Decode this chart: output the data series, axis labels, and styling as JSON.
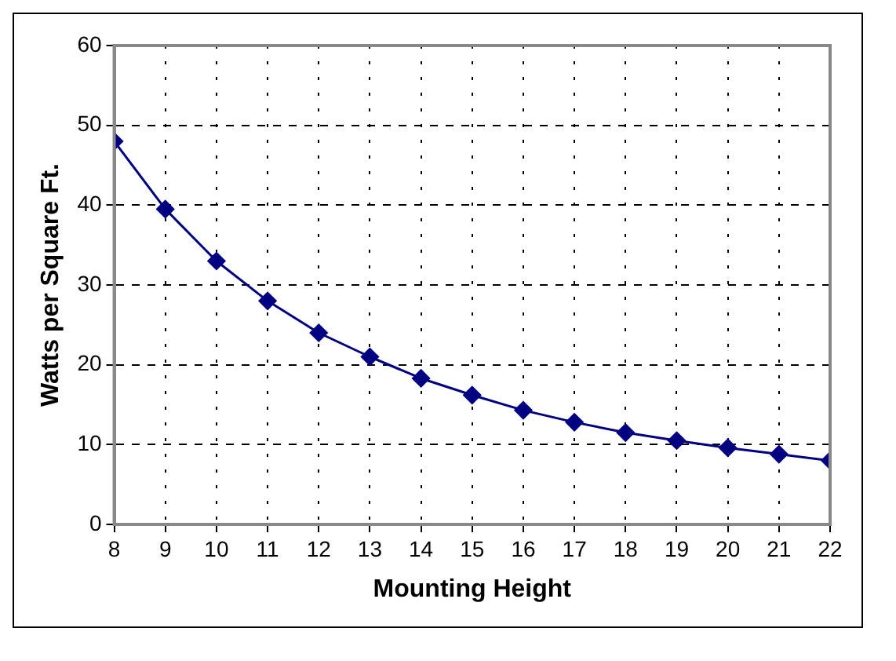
{
  "chart_data": {
    "type": "line",
    "xlabel": "Mounting Height",
    "ylabel": "Watts per Square Ft.",
    "x": [
      8,
      9,
      10,
      11,
      12,
      13,
      14,
      15,
      16,
      17,
      18,
      19,
      20,
      21,
      22
    ],
    "series": [
      {
        "color": "#000080",
        "values": [
          48,
          39.5,
          33,
          28,
          24,
          21,
          18.3,
          16.2,
          14.3,
          12.8,
          11.5,
          10.5,
          9.6,
          8.8,
          8.0
        ]
      }
    ],
    "xlim": [
      8,
      22
    ],
    "xticks": [
      8,
      9,
      10,
      11,
      12,
      13,
      14,
      15,
      16,
      17,
      18,
      19,
      20,
      21,
      22
    ],
    "ylim": [
      0,
      60
    ],
    "yticks": [
      0,
      10,
      20,
      30,
      40,
      50,
      60
    ],
    "grid": true,
    "legend": false,
    "marker": "diamond",
    "line_style": "solid"
  }
}
